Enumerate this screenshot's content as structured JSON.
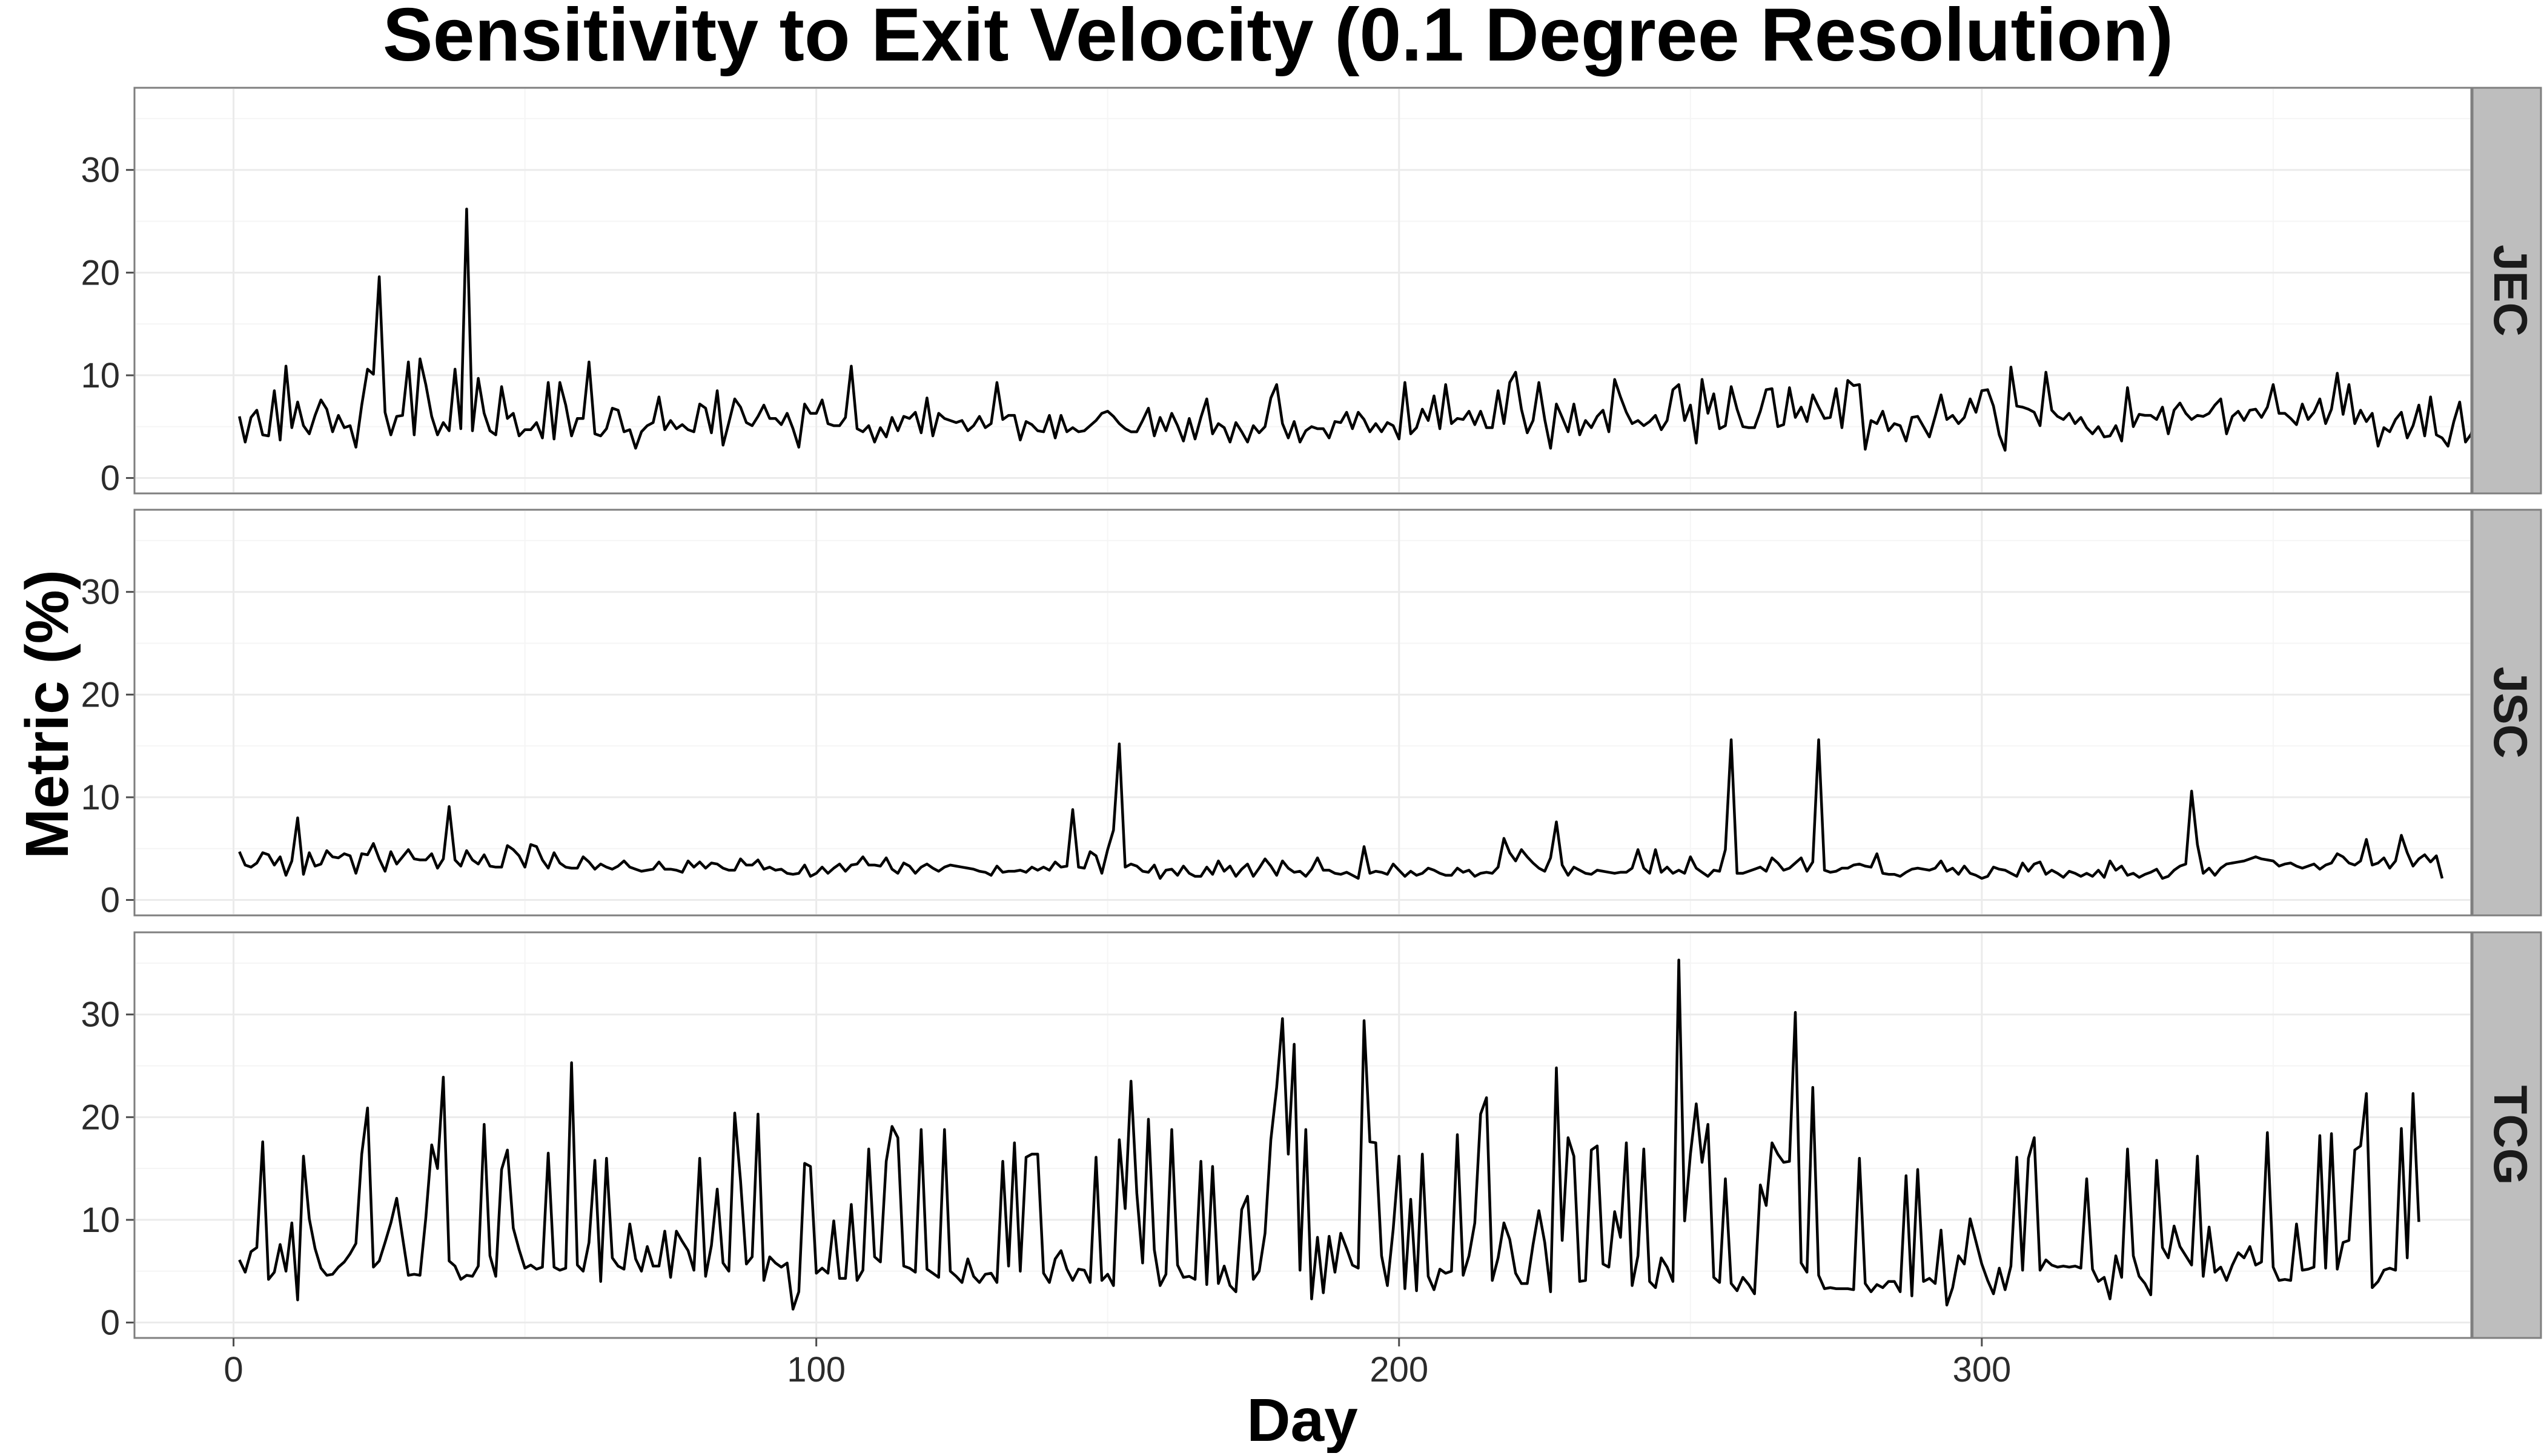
{
  "chart_data": {
    "type": "line",
    "title": "Sensitivity to Exit Velocity (0.1 Degree Resolution)",
    "xlabel": "Day",
    "ylabel": "Metric (%)",
    "xlim": [
      -17,
      384
    ],
    "ylim": [
      -1.5,
      38
    ],
    "x_ticks": [
      0,
      100,
      200,
      300
    ],
    "y_ticks": [
      0,
      10,
      20,
      30
    ],
    "grid": true,
    "facet_layout": "rows, strip labels on right",
    "panels": [
      {
        "name": "JEC",
        "x_start": 1,
        "values": [
          6.0,
          3.5,
          5.9,
          6.6,
          4.2,
          4.1,
          8.5,
          3.7,
          10.9,
          4.9,
          7.4,
          5.1,
          4.3,
          6.1,
          7.6,
          6.7,
          4.5,
          6.1,
          4.9,
          5.1,
          3.0,
          7.1,
          10.6,
          10.1,
          19.6,
          6.4,
          4.2,
          6.0,
          6.1,
          11.3,
          4.2,
          11.6,
          9.1,
          6.0,
          4.2,
          5.4,
          4.6,
          10.6,
          4.8,
          26.2,
          4.6,
          9.7,
          6.3,
          4.6,
          4.2,
          8.9,
          5.8,
          6.3,
          4.1,
          4.7,
          4.7,
          5.4,
          3.9,
          9.3,
          3.8,
          9.3,
          7.1,
          4.1,
          5.8,
          5.8,
          11.3,
          4.3,
          4.1,
          4.8,
          6.8,
          6.6,
          4.5,
          4.7,
          2.9,
          4.5,
          5.1,
          5.4,
          7.9,
          4.7,
          5.6,
          4.8,
          5.2,
          4.7,
          4.5,
          7.2,
          6.8,
          4.4,
          8.5,
          3.2,
          5.4,
          7.7,
          6.9,
          5.4,
          5.1,
          6.0,
          7.1,
          5.8,
          5.8,
          5.2,
          6.3,
          4.8,
          3.0,
          7.2,
          6.3,
          6.3,
          7.6,
          5.3,
          5.1,
          5.1,
          5.9,
          10.9,
          4.8,
          4.5,
          5.1,
          3.5,
          4.9,
          4.0,
          5.9,
          4.6,
          6.0,
          5.8,
          6.4,
          4.4,
          7.8,
          4.1,
          6.3,
          5.8,
          5.6,
          5.4,
          5.6,
          4.6,
          5.1,
          6.0,
          4.9,
          5.3,
          9.3,
          5.7,
          6.1,
          6.1,
          3.7,
          5.5,
          5.2,
          4.6,
          4.5,
          6.1,
          3.9,
          6.1,
          4.5,
          4.9,
          4.5,
          4.6,
          5.1,
          5.6,
          6.3,
          6.5,
          6.0,
          5.3,
          4.8,
          4.5,
          4.5,
          5.6,
          6.8,
          4.1,
          5.9,
          4.6,
          6.3,
          5.1,
          3.6,
          5.8,
          3.8,
          5.9,
          7.7,
          4.3,
          5.3,
          4.9,
          3.5,
          5.4,
          4.5,
          3.5,
          5.1,
          4.4,
          5.0,
          7.8,
          9.1,
          5.3,
          3.9,
          5.5,
          3.5,
          4.6,
          5.0,
          4.8,
          4.8,
          3.9,
          5.5,
          5.4,
          6.4,
          4.8,
          6.4,
          5.7,
          4.5,
          5.3,
          4.5,
          5.4,
          5.1,
          3.8,
          9.3,
          4.3,
          4.9,
          6.7,
          5.6,
          8.0,
          4.8,
          9.1,
          5.3,
          5.8,
          5.7,
          6.5,
          5.2,
          6.5,
          4.9,
          4.9,
          8.5,
          5.3,
          9.3,
          10.3,
          6.7,
          4.4,
          5.6,
          9.3,
          5.7,
          2.9,
          7.2,
          5.9,
          4.5,
          7.2,
          4.2,
          5.6,
          4.9,
          6.0,
          6.6,
          4.5,
          9.6,
          7.9,
          6.4,
          5.3,
          5.6,
          5.1,
          5.5,
          6.1,
          4.7,
          5.6,
          8.6,
          9.1,
          5.6,
          7.1,
          3.4,
          9.6,
          6.3,
          8.2,
          4.8,
          5.1,
          8.9,
          6.7,
          5.0,
          4.9,
          4.9,
          6.5,
          8.6,
          8.7,
          5.0,
          5.2,
          8.8,
          5.9,
          6.9,
          5.5,
          8.1,
          6.9,
          5.8,
          5.9,
          8.7,
          4.9,
          9.5,
          9.0,
          9.1,
          2.8,
          5.6,
          5.3,
          6.5,
          4.6,
          5.3,
          5.1,
          3.6,
          5.9,
          6.0,
          5.0,
          4.0,
          6.0,
          8.1,
          5.7,
          6.1,
          5.3,
          5.9,
          7.7,
          6.4,
          8.5,
          8.6,
          7.0,
          4.2,
          2.7,
          10.8,
          7.0,
          6.9,
          6.7,
          6.4,
          5.1,
          10.3,
          6.6,
          6.0,
          5.7,
          6.3,
          5.3,
          5.9,
          4.9,
          4.3,
          5.0,
          4.0,
          4.1,
          5.1,
          3.6,
          8.8,
          5.0,
          6.2,
          6.1,
          6.1,
          5.7,
          6.9,
          4.3,
          6.6,
          7.3,
          6.3,
          5.7,
          6.1,
          6.0,
          6.3,
          7.1,
          7.7,
          4.3,
          6.0,
          6.5,
          5.6,
          6.6,
          6.7,
          5.9,
          6.9,
          9.1,
          6.3,
          6.3,
          5.8,
          5.2,
          7.2,
          5.7,
          6.4,
          7.7,
          5.3,
          6.7,
          10.2,
          6.2,
          9.1,
          5.3,
          6.6,
          5.5,
          6.3,
          3.1,
          4.9,
          4.5,
          5.7,
          6.4,
          3.9,
          5.1,
          7.1,
          4.1,
          7.9,
          4.2,
          3.9,
          3.1,
          5.5,
          7.4,
          3.5,
          4.3,
          7.6,
          7.3,
          5.4,
          6.5,
          4.0,
          7.2,
          4.9
        ]
      },
      {
        "name": "JSC",
        "x_start": 1,
        "values": [
          4.7,
          3.4,
          3.2,
          3.6,
          4.6,
          4.4,
          3.4,
          4.2,
          2.4,
          3.8,
          8.0,
          2.5,
          4.6,
          3.3,
          3.5,
          4.8,
          4.2,
          4.1,
          4.5,
          4.3,
          2.6,
          4.5,
          4.4,
          5.5,
          4.0,
          2.8,
          4.7,
          3.5,
          4.2,
          4.9,
          4.0,
          3.9,
          3.9,
          4.5,
          3.1,
          4.0,
          9.1,
          3.9,
          3.3,
          4.8,
          3.9,
          3.5,
          4.4,
          3.3,
          3.2,
          3.2,
          5.3,
          4.9,
          4.3,
          3.2,
          5.4,
          5.2,
          3.9,
          3.1,
          4.6,
          3.6,
          3.2,
          3.1,
          3.1,
          4.2,
          3.7,
          3.0,
          3.5,
          3.2,
          3.0,
          3.3,
          3.8,
          3.2,
          3.0,
          2.8,
          2.9,
          3.0,
          3.7,
          3.0,
          3.0,
          2.9,
          2.7,
          3.8,
          3.2,
          3.7,
          3.1,
          3.6,
          3.5,
          3.1,
          2.9,
          2.9,
          4.0,
          3.4,
          3.4,
          3.9,
          3.0,
          3.2,
          2.9,
          3.0,
          2.6,
          2.5,
          2.6,
          3.4,
          2.3,
          2.6,
          3.2,
          2.6,
          3.1,
          3.5,
          2.8,
          3.4,
          3.5,
          4.2,
          3.4,
          3.4,
          3.3,
          4.1,
          3.0,
          2.6,
          3.6,
          3.3,
          2.6,
          3.2,
          3.5,
          3.1,
          2.8,
          3.2,
          3.4,
          3.3,
          3.2,
          3.1,
          3.0,
          2.8,
          2.7,
          2.4,
          3.3,
          2.7,
          2.8,
          2.8,
          2.9,
          2.7,
          3.2,
          2.9,
          3.2,
          2.9,
          3.7,
          3.2,
          3.3,
          8.8,
          3.2,
          3.1,
          4.7,
          4.3,
          2.6,
          4.9,
          6.8,
          15.2,
          3.2,
          3.5,
          3.3,
          2.8,
          2.7,
          3.4,
          2.1,
          2.9,
          3.0,
          2.4,
          3.3,
          2.6,
          2.3,
          2.3,
          3.2,
          2.5,
          3.8,
          2.8,
          3.3,
          2.3,
          3.0,
          3.5,
          2.3,
          3.1,
          4.0,
          3.3,
          2.4,
          3.8,
          3.1,
          2.7,
          2.8,
          2.3,
          3.0,
          4.1,
          2.9,
          2.9,
          2.6,
          2.5,
          2.7,
          2.4,
          2.1,
          5.2,
          2.6,
          2.8,
          2.7,
          2.5,
          3.5,
          2.9,
          2.3,
          2.8,
          2.4,
          2.6,
          3.1,
          2.9,
          2.6,
          2.4,
          2.4,
          3.1,
          2.7,
          2.9,
          2.3,
          2.6,
          2.7,
          2.6,
          3.2,
          6.0,
          4.6,
          3.8,
          4.9,
          4.2,
          3.6,
          3.1,
          2.8,
          4.1,
          7.6,
          3.4,
          2.4,
          3.2,
          2.9,
          2.6,
          2.5,
          2.9,
          2.8,
          2.7,
          2.6,
          2.7,
          2.7,
          3.1,
          4.9,
          3.1,
          2.6,
          4.9,
          2.7,
          3.2,
          2.6,
          2.9,
          2.6,
          4.2,
          3.1,
          2.7,
          2.3,
          2.9,
          2.8,
          4.9,
          15.6,
          2.6,
          2.6,
          2.8,
          3.0,
          3.2,
          2.8,
          4.1,
          3.6,
          2.9,
          3.1,
          3.6,
          4.1,
          2.8,
          3.7,
          15.6,
          2.9,
          2.7,
          2.8,
          3.1,
          3.1,
          3.4,
          3.5,
          3.3,
          3.2,
          4.5,
          2.6,
          2.5,
          2.5,
          2.3,
          2.7,
          3.0,
          3.1,
          3.0,
          2.9,
          3.1,
          3.8,
          2.8,
          3.1,
          2.5,
          3.3,
          2.6,
          2.4,
          2.1,
          2.3,
          3.2,
          3.0,
          2.9,
          2.6,
          2.3,
          3.6,
          2.8,
          3.5,
          3.7,
          2.5,
          2.9,
          2.6,
          2.2,
          2.8,
          2.6,
          2.3,
          2.6,
          2.3,
          2.9,
          2.2,
          3.8,
          2.9,
          3.3,
          2.4,
          2.6,
          2.2,
          2.5,
          2.7,
          3.0,
          2.1,
          2.3,
          2.9,
          3.3,
          3.5,
          10.6,
          5.4,
          2.6,
          3.1,
          2.4,
          3.1,
          3.5,
          3.6,
          3.7,
          3.8,
          4.0,
          4.2,
          4.0,
          3.9,
          3.8,
          3.3,
          3.5,
          3.6,
          3.3,
          3.1,
          3.3,
          3.5,
          3.0,
          3.4,
          3.6,
          4.5,
          4.2,
          3.6,
          3.4,
          3.8,
          5.9,
          3.4,
          3.6,
          4.1,
          3.1,
          3.8,
          6.3,
          4.6,
          3.3,
          4.0,
          4.4,
          3.7,
          4.3,
          2.1
        ]
      },
      {
        "name": "TCG",
        "x_start": 1,
        "values": [
          6.1,
          4.9,
          6.9,
          7.3,
          17.6,
          4.2,
          4.9,
          7.6,
          5.0,
          9.7,
          2.2,
          16.2,
          10.1,
          7.2,
          5.3,
          4.6,
          4.7,
          5.4,
          5.9,
          6.7,
          7.7,
          16.4,
          20.9,
          5.4,
          6.0,
          7.8,
          9.7,
          12.1,
          8.3,
          4.6,
          4.7,
          4.6,
          10.2,
          17.3,
          15.0,
          23.9,
          6.0,
          5.5,
          4.2,
          4.6,
          4.5,
          5.5,
          19.3,
          6.5,
          4.5,
          14.9,
          16.8,
          9.2,
          7.1,
          5.3,
          5.6,
          5.2,
          5.4,
          16.5,
          5.4,
          5.1,
          5.3,
          25.3,
          5.6,
          5.0,
          7.8,
          15.8,
          4.0,
          16.0,
          6.3,
          5.5,
          5.2,
          9.6,
          6.2,
          5.0,
          7.4,
          5.5,
          5.5,
          8.9,
          4.4,
          8.9,
          7.9,
          7.0,
          5.1,
          16.0,
          4.5,
          7.5,
          13.0,
          5.8,
          5.0,
          20.4,
          13.8,
          5.7,
          6.4,
          20.3,
          4.1,
          6.4,
          5.8,
          5.4,
          5.8,
          1.3,
          3.0,
          15.5,
          15.2,
          4.8,
          5.3,
          4.8,
          9.9,
          4.3,
          4.3,
          11.5,
          4.1,
          5.1,
          16.9,
          6.4,
          5.9,
          15.7,
          19.1,
          18.0,
          5.5,
          5.3,
          4.9,
          18.8,
          5.2,
          4.8,
          4.4,
          18.8,
          5.0,
          4.5,
          3.9,
          6.2,
          4.5,
          3.9,
          4.7,
          4.8,
          3.9,
          15.7,
          5.5,
          17.5,
          5.0,
          16.1,
          16.4,
          16.4,
          4.8,
          3.9,
          6.2,
          7.0,
          5.2,
          4.1,
          5.2,
          5.1,
          3.9,
          16.1,
          4.1,
          4.7,
          3.6,
          17.8,
          11.1,
          23.5,
          12.6,
          5.8,
          19.8,
          7.1,
          3.6,
          4.7,
          18.8,
          5.6,
          4.4,
          4.5,
          4.2,
          15.7,
          3.7,
          15.2,
          3.8,
          5.5,
          3.6,
          3.0,
          11.0,
          12.3,
          4.2,
          5.0,
          8.7,
          17.8,
          22.9,
          29.6,
          16.4,
          27.1,
          5.1,
          18.8,
          2.3,
          8.3,
          2.9,
          8.4,
          4.9,
          8.7,
          7.2,
          5.6,
          5.3,
          29.4,
          17.6,
          17.5,
          6.5,
          3.6,
          9.1,
          16.2,
          3.3,
          12.0,
          3.1,
          16.4,
          4.5,
          3.2,
          5.2,
          4.8,
          5.0,
          18.3,
          4.6,
          6.5,
          9.7,
          20.3,
          21.9,
          4.1,
          6.3,
          9.7,
          8.1,
          4.8,
          3.8,
          3.8,
          7.6,
          10.9,
          7.8,
          3.0,
          24.8,
          8.0,
          18.0,
          16.2,
          4.0,
          4.1,
          16.8,
          17.2,
          5.7,
          5.4,
          10.8,
          8.3,
          17.5,
          3.6,
          6.5,
          16.9,
          4.0,
          3.4,
          6.3,
          5.4,
          4.0,
          35.3,
          9.9,
          16.4,
          21.3,
          15.6,
          19.3,
          4.4,
          3.9,
          14.0,
          3.8,
          3.1,
          4.4,
          3.7,
          2.8,
          13.4,
          11.4,
          17.5,
          16.4,
          15.6,
          15.7,
          30.2,
          5.8,
          4.9,
          22.9,
          4.6,
          3.3,
          3.4,
          3.3,
          3.3,
          3.3,
          3.2,
          16.0,
          3.8,
          3.0,
          3.7,
          3.4,
          4.0,
          4.0,
          3.0,
          14.3,
          2.6,
          14.9,
          4.0,
          4.3,
          3.8,
          9.0,
          1.7,
          3.4,
          6.5,
          5.7,
          10.1,
          7.9,
          5.7,
          4.1,
          2.8,
          5.3,
          3.2,
          5.5,
          16.1,
          5.1,
          16.0,
          18.0,
          5.1,
          6.1,
          5.6,
          5.4,
          5.5,
          5.4,
          5.5,
          5.3,
          14.0,
          5.2,
          4.0,
          4.4,
          2.3,
          6.5,
          4.4,
          16.9,
          6.5,
          4.5,
          3.8,
          2.7,
          15.8,
          7.3,
          6.3,
          9.4,
          7.4,
          6.5,
          5.6,
          16.2,
          4.5,
          9.3,
          4.9,
          5.4,
          4.1,
          5.6,
          6.8,
          6.3,
          7.4,
          5.6,
          5.9,
          18.5,
          5.4,
          4.1,
          4.2,
          4.1,
          9.6,
          5.1,
          5.2,
          5.4,
          18.2,
          5.3,
          18.4,
          5.2,
          7.8,
          8.0,
          16.8,
          17.2,
          22.3,
          3.4,
          4.0,
          5.1,
          5.3,
          5.1,
          18.9,
          6.3,
          22.3,
          9.8
        ]
      }
    ]
  }
}
